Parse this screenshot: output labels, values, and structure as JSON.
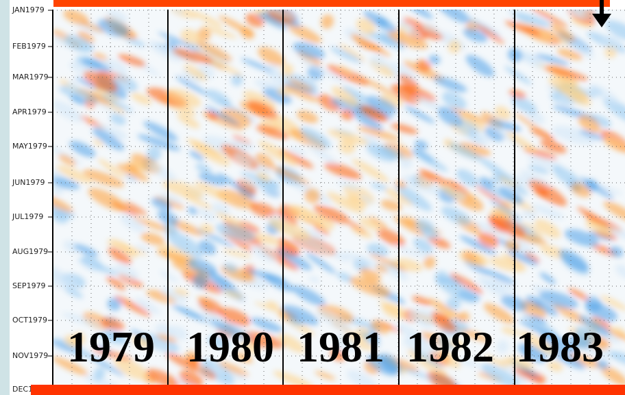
{
  "y_axis": {
    "labels": [
      "JAN1979",
      "FEB1979",
      "MAR1979",
      "APR1979",
      "MAY1979",
      "JUN1979",
      "JUL1979",
      "AUG1979",
      "SEP1979",
      "OCT1979",
      "NOV1979",
      "DEC1"
    ]
  },
  "panels": {
    "labels": [
      "1979",
      "1980",
      "1981",
      "1982",
      "1983"
    ]
  }
}
